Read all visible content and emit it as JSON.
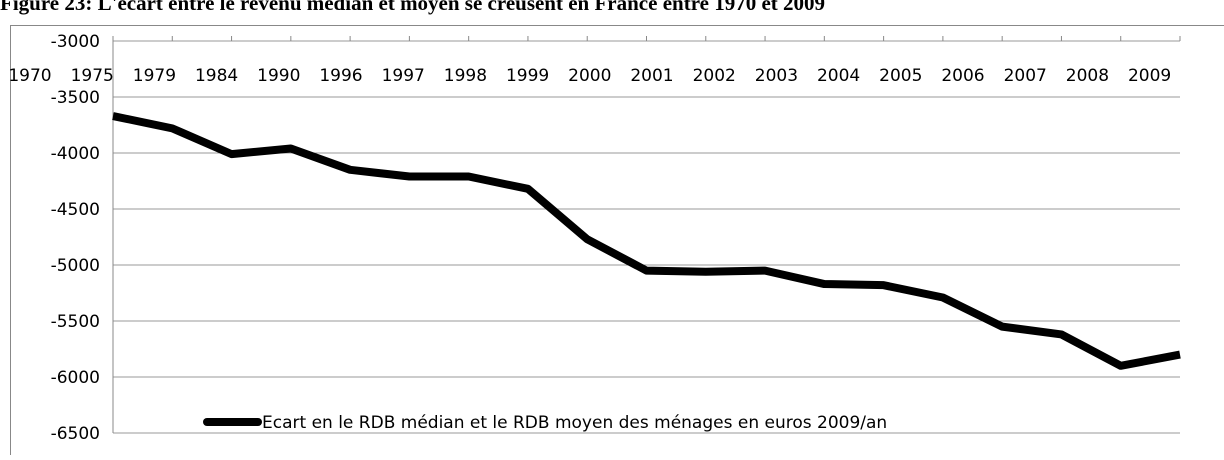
{
  "chart_data": {
    "type": "line",
    "title": "Figure 23: L'écart entre le revenu médian et moyen se creusent en France entre 1970 et 2009",
    "categories": [
      "1970",
      "1975",
      "1979",
      "1984",
      "1990",
      "1996",
      "1997",
      "1998",
      "1999",
      "2000",
      "2001",
      "2002",
      "2003",
      "2004",
      "2005",
      "2006",
      "2007",
      "2008",
      "2009"
    ],
    "series": [
      {
        "name": "Ecart en le RDB médian et le RDB moyen des ménages en euros 2009/an",
        "color": "#000000",
        "values": [
          -3670,
          -3780,
          -4010,
          -3960,
          -4150,
          -4210,
          -4210,
          -4320,
          -4770,
          -5050,
          -5060,
          -5050,
          -5170,
          -5180,
          -5290,
          -5550,
          -5620,
          -5900,
          -5800
        ]
      }
    ],
    "ylim": [
      -6500,
      -3000
    ],
    "yticks": [
      -3000,
      -3500,
      -4000,
      -4500,
      -5000,
      -5500,
      -6000,
      -6500
    ],
    "grid": true,
    "legend": "bottom"
  }
}
